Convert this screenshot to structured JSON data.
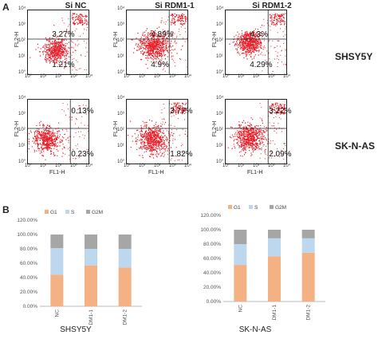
{
  "panel_a": {
    "letter": "A",
    "columns": [
      "Si NC",
      "Si RDM1-1",
      "Si RDM1-2"
    ],
    "rows": [
      "SHSY5Y",
      "SK-N-AS"
    ],
    "y_axis_label": "FL2-H",
    "x_axis_label": "FL1-H",
    "tick_labels": [
      "10°",
      "10¹",
      "10²",
      "10³",
      "10⁴"
    ],
    "dot_color": "#e8202a",
    "plots": [
      {
        "top": "3.27%",
        "bottom": "1.21%"
      },
      {
        "top": "4.89%",
        "bottom": "4.9%"
      },
      {
        "top": "4.3%",
        "bottom": "4.29%"
      },
      {
        "top": "0.13%",
        "bottom": "0.23%"
      },
      {
        "top": "3.77%",
        "bottom": "1.82%"
      },
      {
        "top": "3.22%",
        "bottom": "2.09%"
      }
    ]
  },
  "panel_b": {
    "letter": "B",
    "colors": {
      "G1": "#f4b183",
      "S": "#bdd7ee",
      "G2M": "#a6a6a6"
    }
  },
  "chart_data": [
    {
      "type": "bar",
      "stacked": true,
      "title": "",
      "xlabel": "SHSY5Y",
      "ylabel": "",
      "categories": [
        "NC",
        "sIRDM1-1",
        "sIRDM1-2"
      ],
      "series": [
        {
          "name": "G1",
          "values": [
            44,
            57,
            54
          ]
        },
        {
          "name": "S",
          "values": [
            37,
            23,
            26
          ]
        },
        {
          "name": "G2M",
          "values": [
            19,
            20,
            20
          ]
        }
      ],
      "ylim": [
        0,
        120
      ],
      "yticks": [
        "0.00%",
        "20.00%",
        "40.00%",
        "60.00%",
        "80.00%",
        "100.00%",
        "120.00%"
      ],
      "legend": "top",
      "grid": false
    },
    {
      "type": "bar",
      "stacked": true,
      "title": "",
      "xlabel": "SK-N-AS",
      "ylabel": "",
      "categories": [
        "NC",
        "sIRDM1-1",
        "sIRDM1-2"
      ],
      "series": [
        {
          "name": "G1",
          "values": [
            51,
            63,
            68
          ]
        },
        {
          "name": "S",
          "values": [
            29,
            25,
            20
          ]
        },
        {
          "name": "G2M",
          "values": [
            20,
            12,
            12
          ]
        }
      ],
      "ylim": [
        0,
        120
      ],
      "yticks": [
        "0.00%",
        "20.00%",
        "40.00%",
        "60.00%",
        "80.00%",
        "100.00%",
        "120.00%"
      ],
      "legend": "top",
      "grid": false
    }
  ]
}
